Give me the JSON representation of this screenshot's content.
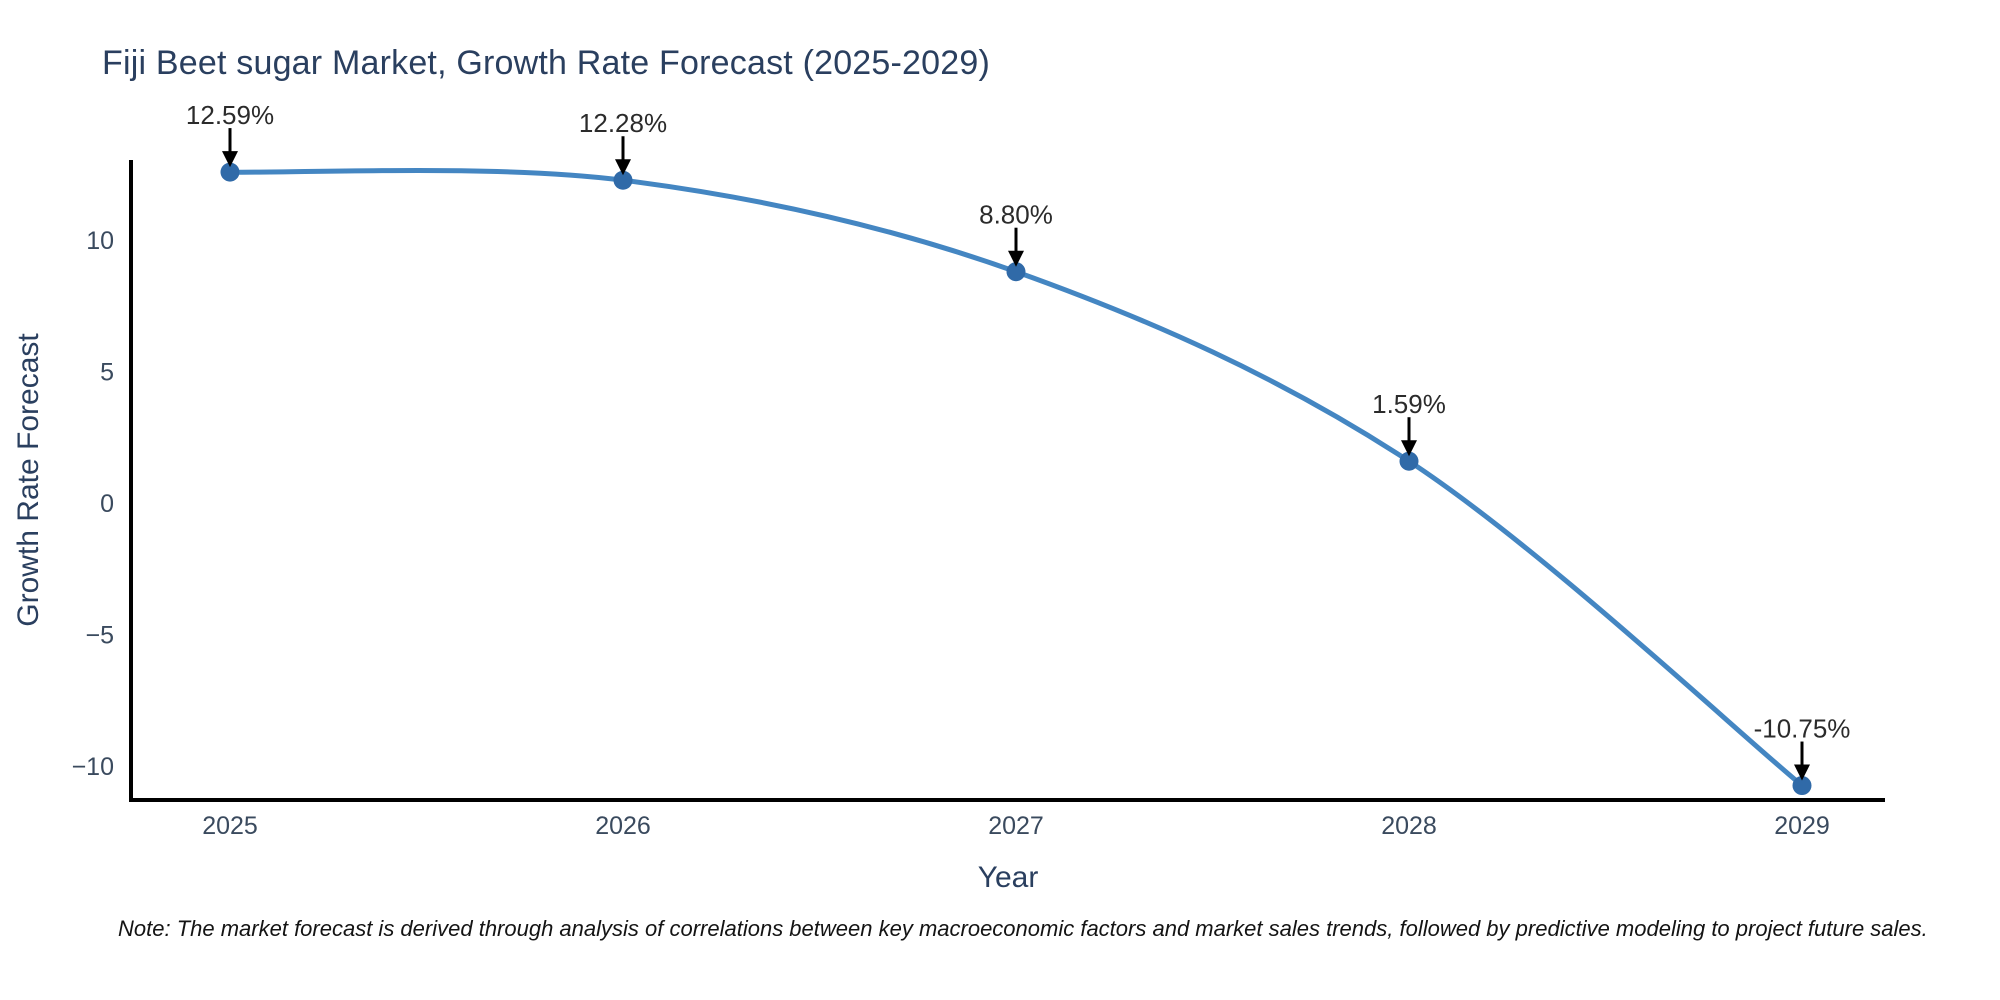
{
  "chart_data": {
    "type": "line",
    "line_shape": "spline",
    "title": "Fiji Beet sugar Market, Growth Rate Forecast (2025-2029)",
    "xlabel": "Year",
    "ylabel": "Growth Rate Forecast",
    "categories": [
      "2025",
      "2026",
      "2027",
      "2028",
      "2029"
    ],
    "values": [
      12.59,
      12.28,
      8.8,
      1.59,
      -10.75
    ],
    "point_labels": [
      "12.59%",
      "12.28%",
      "8.80%",
      "1.59%",
      "-10.75%"
    ],
    "yticks": [
      10,
      5,
      0,
      -5,
      -10
    ],
    "ytick_labels": [
      "10",
      "5",
      "0",
      "−5",
      "−10"
    ],
    "ylim": [
      -11.3,
      13.05
    ],
    "grid": false,
    "legend": "none",
    "colors": {
      "line": "#4486c2",
      "marker": "#306aa8",
      "axis": "#000000",
      "heading": "#2a3f5f",
      "tick": "#3a4a5e",
      "annotation": "#2b2b2b",
      "background": "#ffffff"
    }
  },
  "note": "Note: The market forecast is derived through analysis of correlations between key macroeconomic factors and market sales trends, followed by predictive modeling to project future sales."
}
